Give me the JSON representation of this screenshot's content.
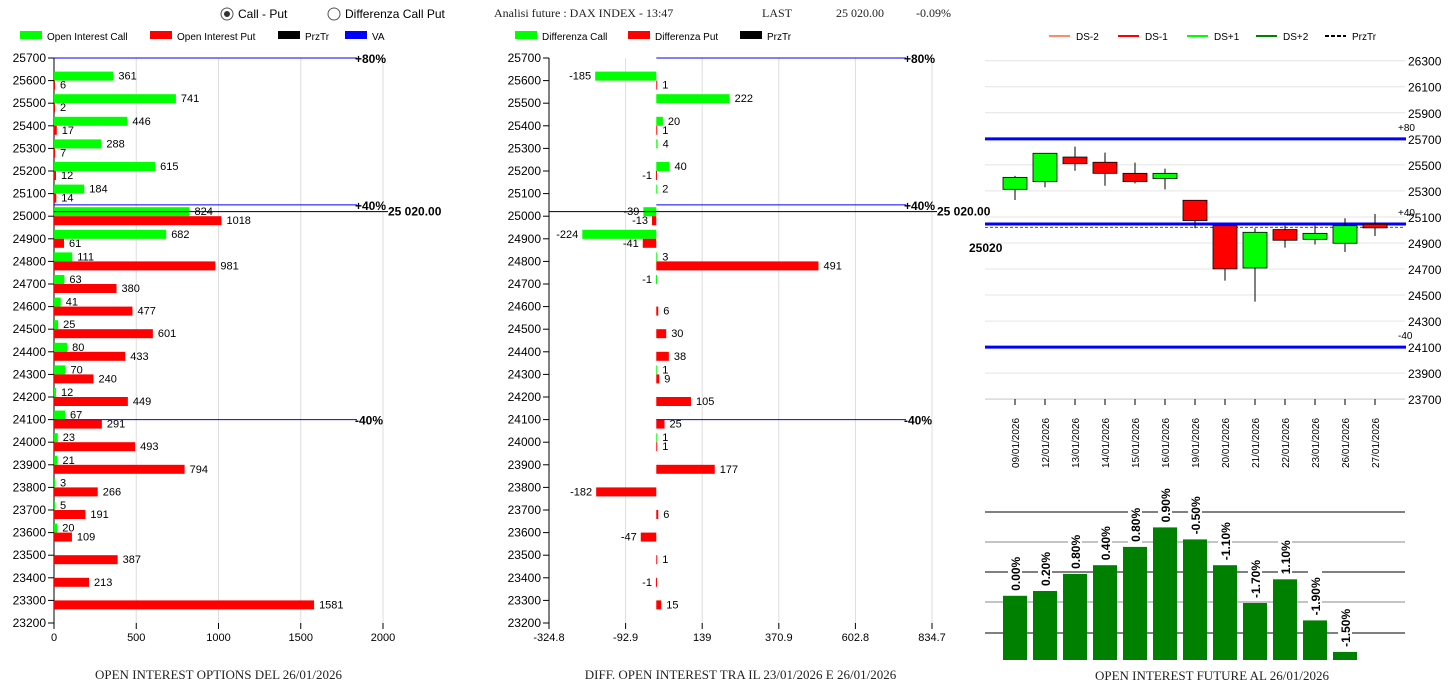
{
  "header": {
    "radio_options": [
      {
        "label": "Call - Put",
        "selected": true
      },
      {
        "label": "Differenza Call Put",
        "selected": false
      }
    ],
    "title": "Analisi future : DAX INDEX - 13:47",
    "last_label": "LAST",
    "last_value": "25 020.00",
    "change": "-0.09%"
  },
  "colors": {
    "call": "#00ff00",
    "put": "#ff0000",
    "przTr": "#000000",
    "va": "#0000ff",
    "ds_minus2": "#ff8c69",
    "ds_minus1": "#ff0000",
    "ds_plus1": "#00ff00",
    "ds_plus2": "#008000",
    "oi_future": "#008000"
  },
  "chart_data": [
    {
      "type": "bar",
      "orientation": "horizontal",
      "title": "OPEN INTEREST OPTIONS DEL 26/01/2026",
      "legend": [
        "Open Interest Call",
        "Open Interest Put",
        "PrzTr",
        "VA"
      ],
      "legend_placement": "top",
      "categories": [
        25700,
        25600,
        25500,
        25400,
        25300,
        25200,
        25100,
        25000,
        24900,
        24800,
        24700,
        24600,
        24500,
        24400,
        24300,
        24200,
        24100,
        24000,
        23900,
        23800,
        23700,
        23600,
        23500,
        23400,
        23300,
        23200
      ],
      "series": [
        {
          "name": "Open Interest Call",
          "values": [
            null,
            361,
            741,
            446,
            288,
            615,
            184,
            824,
            682,
            111,
            63,
            41,
            25,
            80,
            70,
            12,
            67,
            23,
            21,
            3,
            5,
            20,
            null,
            null,
            null,
            null
          ]
        },
        {
          "name": "Open Interest Put",
          "values": [
            null,
            6,
            2,
            17,
            7,
            12,
            14,
            1018,
            61,
            981,
            380,
            477,
            601,
            433,
            240,
            449,
            291,
            493,
            794,
            266,
            191,
            109,
            387,
            213,
            1581,
            null
          ]
        }
      ],
      "xlim": [
        0,
        2000
      ],
      "xticks": [
        "0",
        "500",
        "1000",
        "1500",
        "2000"
      ],
      "grid": "vertical",
      "va_lines": [
        {
          "label": "+80%",
          "strike": 25700
        },
        {
          "label": "+40%",
          "strike": 25050
        },
        {
          "label": "-40%",
          "strike": 24100
        }
      ],
      "przTr": {
        "value": 25020,
        "label": "25 020.00"
      }
    },
    {
      "type": "bar",
      "orientation": "horizontal",
      "title": "DIFF. OPEN INTEREST TRA IL 23/01/2026 E 26/01/2026",
      "legend": [
        "Differenza Call",
        "Differenza Put",
        "PrzTr"
      ],
      "legend_placement": "top",
      "categories": [
        25700,
        25600,
        25500,
        25400,
        25300,
        25200,
        25100,
        25000,
        24900,
        24800,
        24700,
        24600,
        24500,
        24400,
        24300,
        24200,
        24100,
        24000,
        23900,
        23800,
        23700,
        23600,
        23500,
        23400,
        23300,
        23200
      ],
      "series": [
        {
          "name": "Differenza Call",
          "values": [
            null,
            -185,
            222,
            20,
            4,
            40,
            2,
            -39,
            -224,
            3,
            -1,
            null,
            null,
            null,
            1,
            null,
            null,
            1,
            null,
            null,
            null,
            null,
            null,
            null,
            null,
            null
          ]
        },
        {
          "name": "Differenza Put",
          "values": [
            null,
            1,
            null,
            1,
            null,
            -1,
            null,
            -13,
            -41,
            491,
            null,
            6,
            30,
            38,
            9,
            105,
            25,
            1,
            177,
            -182,
            6,
            -47,
            1,
            -1,
            15,
            null
          ]
        }
      ],
      "xlim": [
        -324.8,
        834.7
      ],
      "xticks": [
        "-324.8",
        "-92.9",
        "139",
        "370.9",
        "602.8",
        "834.7"
      ],
      "grid": "vertical",
      "va_lines": [
        {
          "label": "+80%",
          "strike": 25700
        },
        {
          "label": "+40%",
          "strike": 25050
        },
        {
          "label": "-40%",
          "strike": 24100
        }
      ],
      "przTr": {
        "value": 25020,
        "label": "25 020.00"
      }
    },
    {
      "type": "candlestick",
      "legend": [
        "DS-2",
        "DS-1",
        "DS+1",
        "DS+2",
        "PrzTr"
      ],
      "legend_placement": "top",
      "ylim": [
        23700,
        26300
      ],
      "yticks": [
        "26300",
        "26100",
        "25900",
        "25700",
        "25500",
        "25300",
        "25100",
        "24900",
        "24700",
        "24500",
        "24300",
        "24100",
        "23900",
        "23700"
      ],
      "grid": "horizontal",
      "dates": [
        "09/01/2026",
        "12/01/2026",
        "13/01/2026",
        "14/01/2026",
        "15/01/2026",
        "16/01/2026",
        "19/01/2026",
        "20/01/2026",
        "21/01/2026",
        "22/01/2026",
        "23/01/2026",
        "26/01/2026",
        "27/01/2026"
      ],
      "ohlc": [
        [
          25312,
          25415,
          25230,
          25404
        ],
        [
          25371,
          25589,
          25328,
          25589
        ],
        [
          25560,
          25640,
          25455,
          25509
        ],
        [
          25520,
          25594,
          25340,
          25435
        ],
        [
          25435,
          25517,
          25358,
          25371
        ],
        [
          25394,
          25471,
          25312,
          25435
        ],
        [
          25228,
          25228,
          25013,
          25072
        ],
        [
          25033,
          25033,
          24611,
          24701
        ],
        [
          24708,
          25013,
          24450,
          24982
        ],
        [
          25003,
          25033,
          24864,
          24921
        ],
        [
          24928,
          25033,
          24888,
          24974
        ],
        [
          24898,
          25090,
          24831,
          25033
        ],
        [
          25044,
          25123,
          24954,
          25016
        ]
      ],
      "levels": [
        {
          "label": "+80",
          "value": 25700
        },
        {
          "label": "+40",
          "value": 25046
        },
        {
          "label": "-40",
          "value": 24100
        }
      ],
      "przTr": {
        "value": 25020,
        "label": "25020"
      }
    },
    {
      "type": "bar",
      "title": "OPEN INTEREST FUTURE AL 26/01/2026",
      "labels": [
        "0.00%",
        "0.20%",
        "0.80%",
        "0.40%",
        "0.80%",
        "0.90%",
        "-0.50%",
        "-1.10%",
        "-1.70%",
        "1.10%",
        "-1.90%",
        "-1.50%"
      ],
      "values_relative": [
        2.14,
        2.3,
        2.87,
        3.16,
        3.77,
        4.42,
        4.02,
        3.16,
        1.9,
        2.69,
        1.32,
        0.27
      ],
      "grid": "horizontal"
    }
  ]
}
